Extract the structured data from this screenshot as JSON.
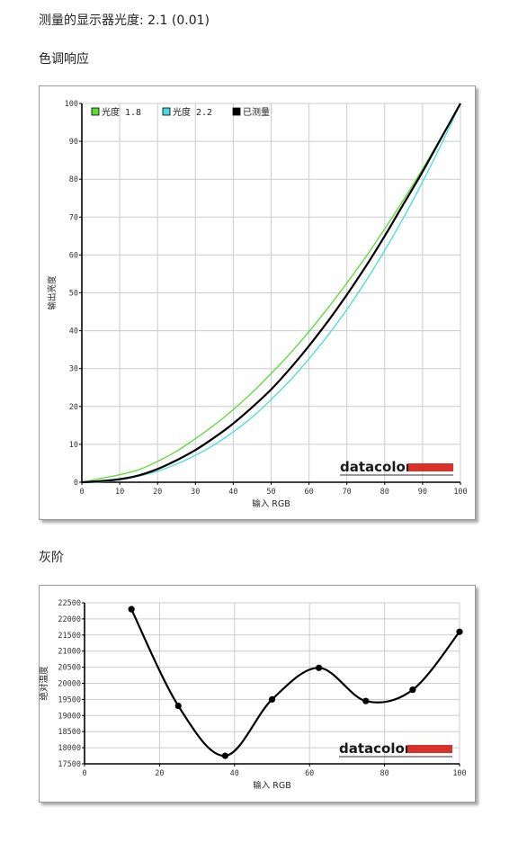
{
  "header": {
    "measured_gamma": "测量的显示器光度:  2.1 (0.01)",
    "tone_section": "色调响应",
    "grayscale_section": "灰阶"
  },
  "logo": {
    "text": "datacolor",
    "bar_color": "#d9322b"
  },
  "chart_data": [
    {
      "type": "line",
      "xlabel": "输入 RGB",
      "ylabel": "输出亮度",
      "xlim": [
        0,
        100
      ],
      "ylim": [
        0,
        100
      ],
      "xticks": [
        0,
        10,
        20,
        30,
        40,
        50,
        60,
        70,
        80,
        90,
        100
      ],
      "yticks": [
        0,
        10,
        20,
        30,
        40,
        50,
        60,
        70,
        80,
        90,
        100
      ],
      "grid": true,
      "legend_position": "top-left",
      "series": [
        {
          "name": "光度 1.8",
          "color": "#55dd33",
          "x": [
            0,
            5,
            10,
            15,
            20,
            25,
            30,
            35,
            40,
            45,
            50,
            55,
            60,
            65,
            70,
            75,
            80,
            85,
            90,
            95,
            100
          ],
          "y": [
            0,
            1.0,
            2.0,
            3.3,
            5.5,
            8.2,
            11.5,
            15.1,
            19.2,
            23.7,
            28.7,
            34.0,
            39.8,
            46.0,
            52.6,
            59.5,
            66.9,
            74.6,
            82.7,
            91.2,
            100
          ]
        },
        {
          "name": "光度 2.2",
          "color": "#44dddd",
          "x": [
            0,
            5,
            10,
            15,
            20,
            25,
            30,
            35,
            40,
            45,
            50,
            55,
            60,
            65,
            70,
            75,
            80,
            85,
            90,
            95,
            100
          ],
          "y": [
            0,
            0.1,
            0.6,
            1.6,
            2.9,
            4.8,
            7.1,
            9.9,
            13.3,
            17.2,
            21.8,
            26.9,
            32.6,
            38.8,
            45.6,
            53.1,
            61.2,
            69.9,
            79.3,
            89.3,
            100
          ]
        },
        {
          "name": "已测量",
          "color": "#000000",
          "x": [
            0,
            5,
            10,
            15,
            20,
            25,
            30,
            35,
            40,
            45,
            50,
            55,
            60,
            65,
            70,
            75,
            80,
            85,
            90,
            95,
            100
          ],
          "y": [
            0,
            0.3,
            0.8,
            1.8,
            3.5,
            5.8,
            8.5,
            11.8,
            15.5,
            19.8,
            24.5,
            30.0,
            36.0,
            42.5,
            49.5,
            57.0,
            65.0,
            73.5,
            82.0,
            91.0,
            100
          ]
        }
      ]
    },
    {
      "type": "line",
      "xlabel": "输入 RGB",
      "ylabel": "绝对温度",
      "xlim": [
        0,
        100
      ],
      "ylim": [
        17500,
        22500
      ],
      "xticks": [
        0,
        20,
        40,
        60,
        80,
        100
      ],
      "yticks": [
        17500,
        18000,
        18500,
        19000,
        19500,
        20000,
        20500,
        21000,
        21500,
        22000,
        22500
      ],
      "grid": true,
      "series": [
        {
          "color": "#000000",
          "x": [
            12.5,
            25,
            37.5,
            50,
            62.5,
            75,
            87.5,
            100
          ],
          "y": [
            22300,
            19300,
            17750,
            19500,
            20480,
            19450,
            19800,
            21600
          ]
        }
      ]
    }
  ]
}
